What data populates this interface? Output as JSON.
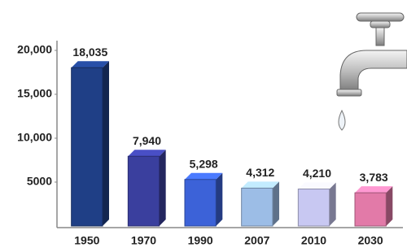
{
  "chart_data": {
    "type": "bar3d",
    "categories": [
      "1950",
      "1970",
      "1990",
      "2007",
      "2010",
      "2030"
    ],
    "values": [
      18035,
      7940,
      5298,
      4312,
      4210,
      3783
    ],
    "value_labels": [
      "18,035",
      "7,940",
      "5,298",
      "4,312",
      "4,210",
      "3,783"
    ],
    "colors": [
      "#1f3f86",
      "#3a3f9e",
      "#3c62d8",
      "#9cbde6",
      "#c8c8f2",
      "#e27aa8"
    ],
    "ylim": [
      0,
      20000
    ],
    "yticks": [
      {
        "value": 5000,
        "label": "5000"
      },
      {
        "value": 10000,
        "label": "10,000"
      },
      {
        "value": 15000,
        "label": "15,000"
      },
      {
        "value": 20000,
        "label": "20,000"
      }
    ]
  }
}
